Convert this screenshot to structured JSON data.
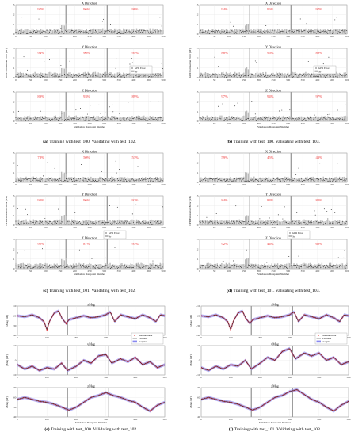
{
  "figure": {
    "captions": [
      {
        "letter": "(a)",
        "text": "Training with test_100. Validating with test_102."
      },
      {
        "letter": "(b)",
        "text": "Training with test_100. Validating with test_103."
      },
      {
        "letter": "(c)",
        "text": "Training with test_101. Validating with test_102."
      },
      {
        "letter": "(d)",
        "text": "Training with test_101. Validating with test_103."
      },
      {
        "letter": "(e)",
        "text": "Training with test_100. Validating with test_102."
      },
      {
        "letter": "(f)",
        "text": "Training with test_101. Validating with test_103."
      }
    ]
  },
  "chart_data": [
    {
      "panel": "a",
      "type": "scatter",
      "ylabel": "GPR Estimation Error (nT)",
      "xlabel": "Validation Datapoint Number",
      "xlim": [
        0,
        500
      ],
      "xticks": [
        0,
        50,
        100,
        150,
        200,
        250,
        300,
        350,
        400,
        450,
        500
      ],
      "dividers": [
        170,
        310
      ],
      "legend": {
        "placement": "middle-right",
        "entries": [
          "GPR Error",
          "3σ"
        ]
      },
      "subplots": [
        {
          "title": "X Direction",
          "ylim": [
            0,
            3
          ],
          "yticks": [
            0,
            1,
            2,
            3
          ],
          "percentages": [
            "97%",
            "96%",
            "98%"
          ]
        },
        {
          "title": "Y Direction",
          "ylim": [
            0,
            3
          ],
          "yticks": [
            0,
            1,
            2,
            3
          ],
          "percentages": [
            "94%",
            "96%",
            "94%"
          ]
        },
        {
          "title": "Z Direction",
          "ylim": [
            0,
            3
          ],
          "yticks": [
            0,
            1,
            2,
            3
          ],
          "percentages": [
            "89%",
            "93%",
            "89%"
          ]
        }
      ]
    },
    {
      "panel": "b",
      "type": "scatter",
      "ylabel": "GPR Estimation Error (nT)",
      "xlabel": "Validation Datapoint Number",
      "xlim": [
        0,
        500
      ],
      "xticks": [
        0,
        50,
        100,
        150,
        200,
        250,
        300,
        350,
        400,
        450,
        500
      ],
      "dividers": [
        170,
        310
      ],
      "legend": {
        "placement": "middle-right",
        "entries": [
          "GPR Error",
          "3σ"
        ]
      },
      "subplots": [
        {
          "title": "X Direction",
          "ylim": [
            0,
            3
          ],
          "yticks": [
            0,
            1,
            2,
            3
          ],
          "percentages": [
            "94%",
            "96%",
            "97%"
          ]
        },
        {
          "title": "Y Direction",
          "ylim": [
            0,
            3
          ],
          "yticks": [
            0,
            1,
            2,
            3
          ],
          "percentages": [
            "88%",
            "96%",
            "89%"
          ]
        },
        {
          "title": "Z Direction",
          "ylim": [
            0,
            3
          ],
          "yticks": [
            0,
            1,
            2,
            3
          ],
          "percentages": [
            "97%",
            "94%",
            "97%"
          ]
        }
      ]
    },
    {
      "panel": "c",
      "type": "scatter",
      "ylabel": "GPR Estimation Error (nT)",
      "xlabel": "Validation Datapoint Number",
      "xlim": [
        0,
        500
      ],
      "xticks": [
        0,
        50,
        100,
        150,
        200,
        250,
        300,
        350,
        400,
        450,
        500
      ],
      "dividers": [
        170,
        310
      ],
      "legend": {
        "placement": "bottom-middle",
        "entries": [
          "GPR Error",
          "3σ"
        ]
      },
      "subplots": [
        {
          "title": "X Direction",
          "ylim": [
            0,
            3
          ],
          "yticks": [
            0,
            1,
            2,
            3
          ],
          "percentages": [
            "78%",
            "50%",
            "53%"
          ]
        },
        {
          "title": "Y Direction",
          "ylim": [
            0,
            3
          ],
          "yticks": [
            0,
            1,
            2,
            3
          ],
          "percentages": [
            "92%",
            "96%",
            "92%"
          ]
        },
        {
          "title": "Z Direction",
          "ylim": [
            0,
            3
          ],
          "yticks": [
            0,
            1,
            2,
            3
          ],
          "percentages": [
            "92%",
            "87%",
            "93%"
          ]
        }
      ]
    },
    {
      "panel": "d",
      "type": "scatter",
      "ylabel": "GPR Estimation Error (nT)",
      "xlabel": "Validation Datapoint Number",
      "xlim": [
        0,
        500
      ],
      "xticks": [
        0,
        50,
        100,
        150,
        200,
        250,
        300,
        350,
        400,
        450,
        500
      ],
      "dividers": [
        170,
        310
      ],
      "legend": {
        "placement": "bottom-middle",
        "entries": [
          "GPR Error",
          "3σ"
        ]
      },
      "subplots": [
        {
          "title": "X Direction",
          "ylim": [
            0,
            3
          ],
          "yticks": [
            0,
            1,
            2,
            3
          ],
          "percentages": [
            "59%",
            "45%",
            "43%"
          ]
        },
        {
          "title": "Y Direction",
          "ylim": [
            0,
            3
          ],
          "yticks": [
            0,
            1,
            2,
            3
          ],
          "percentages": [
            "84%",
            "84%",
            "82%"
          ]
        },
        {
          "title": "Z Direction",
          "ylim": [
            0,
            3
          ],
          "yticks": [
            0,
            1,
            2,
            3
          ],
          "percentages": [
            "92%",
            "44%",
            "60%"
          ]
        }
      ]
    },
    {
      "panel": "e",
      "type": "line",
      "xlabel": "Validation Datapoint Number",
      "xlim": [
        0,
        500
      ],
      "xticks": [
        0,
        100,
        200,
        300,
        400,
        500
      ],
      "dividers": [
        170,
        310
      ],
      "legend": {
        "placement": "top-right",
        "entries": [
          "Measurement",
          "Estimate",
          "2 sigma"
        ]
      },
      "subplots": [
        {
          "title": "xMag",
          "ylabel": "xMag (nT)",
          "ylim": [
            -40,
            -10
          ],
          "yticks": [
            -40,
            -30,
            -20,
            -10
          ],
          "x": [
            0,
            25,
            50,
            75,
            90,
            100,
            110,
            125,
            140,
            150,
            165,
            175,
            200,
            225,
            250,
            275,
            300,
            315,
            330,
            350,
            375,
            400,
            425,
            450,
            470,
            485,
            500
          ],
          "y": [
            -20,
            -21,
            -19,
            -22,
            -26,
            -34,
            -25,
            -17,
            -15,
            -22,
            -28,
            -24,
            -22,
            -20,
            -22,
            -21,
            -19,
            -16,
            -26,
            -19,
            -21,
            -23,
            -19,
            -22,
            -26,
            -19,
            -20
          ]
        },
        {
          "title": "yMag",
          "ylabel": "yMag (nT)",
          "ylim": [
            -10,
            10
          ],
          "yticks": [
            -10,
            0,
            10
          ],
          "x": [
            0,
            25,
            50,
            75,
            100,
            125,
            150,
            170,
            200,
            225,
            250,
            275,
            300,
            320,
            350,
            375,
            400,
            425,
            450,
            475,
            500
          ],
          "y": [
            -3,
            -6,
            -4,
            -7,
            -5,
            -6,
            -2,
            -7,
            -4,
            0,
            -2,
            3,
            4,
            -2,
            1,
            -1,
            2,
            -3,
            -1,
            -5,
            -3
          ]
        },
        {
          "title": "zMag",
          "ylabel": "zMag (nT)",
          "ylim": [
            40,
            70
          ],
          "yticks": [
            40,
            50,
            60,
            70
          ],
          "x": [
            0,
            25,
            50,
            75,
            100,
            125,
            150,
            175,
            200,
            225,
            250,
            275,
            300,
            325,
            350,
            375,
            400,
            425,
            450,
            475,
            500
          ],
          "y": [
            58,
            60,
            58,
            56,
            55,
            53,
            50,
            47,
            50,
            55,
            60,
            62,
            65,
            62,
            60,
            57,
            55,
            50,
            46,
            52,
            55
          ]
        }
      ]
    },
    {
      "panel": "f",
      "type": "line",
      "xlabel": "Validation Datapoint Number",
      "xlim": [
        0,
        500
      ],
      "xticks": [
        0,
        100,
        200,
        300,
        400,
        500
      ],
      "dividers": [
        170,
        310
      ],
      "legend": {
        "placement": "top-right",
        "entries": [
          "Measurement",
          "Estimate",
          "2 sigma"
        ]
      },
      "subplots": [
        {
          "title": "xMag",
          "ylabel": "xMag (nT)",
          "ylim": [
            -40,
            -10
          ],
          "yticks": [
            -40,
            -30,
            -20,
            -10
          ],
          "x": [
            0,
            25,
            50,
            75,
            90,
            100,
            110,
            125,
            140,
            150,
            165,
            175,
            200,
            225,
            250,
            275,
            300,
            315,
            330,
            350,
            375,
            400,
            425,
            450,
            470,
            485,
            500
          ],
          "y": [
            -20,
            -21,
            -19,
            -22,
            -26,
            -34,
            -25,
            -17,
            -15,
            -22,
            -28,
            -24,
            -22,
            -20,
            -22,
            -21,
            -19,
            -16,
            -26,
            -19,
            -21,
            -23,
            -19,
            -22,
            -26,
            -19,
            -20
          ]
        },
        {
          "title": "yMag",
          "ylabel": "yMag (nT)",
          "ylim": [
            -10,
            10
          ],
          "yticks": [
            -10,
            0,
            10
          ],
          "x": [
            0,
            25,
            50,
            75,
            100,
            125,
            150,
            170,
            200,
            225,
            250,
            275,
            300,
            320,
            350,
            375,
            400,
            425,
            450,
            475,
            500
          ],
          "y": [
            -5,
            -7,
            -4,
            -6,
            -3,
            -4,
            0,
            -6,
            -2,
            2,
            0,
            6,
            8,
            1,
            5,
            3,
            5,
            0,
            2,
            -3,
            -1
          ]
        },
        {
          "title": "zMag",
          "ylabel": "zMag (nT)",
          "ylim": [
            40,
            70
          ],
          "yticks": [
            40,
            50,
            60,
            70
          ],
          "x": [
            0,
            25,
            50,
            75,
            100,
            125,
            150,
            175,
            200,
            225,
            250,
            275,
            300,
            325,
            350,
            375,
            400,
            425,
            450,
            475,
            500
          ],
          "y": [
            58,
            60,
            58,
            56,
            55,
            53,
            50,
            47,
            50,
            55,
            60,
            62,
            66,
            68,
            63,
            58,
            55,
            50,
            46,
            52,
            56
          ]
        }
      ]
    }
  ]
}
